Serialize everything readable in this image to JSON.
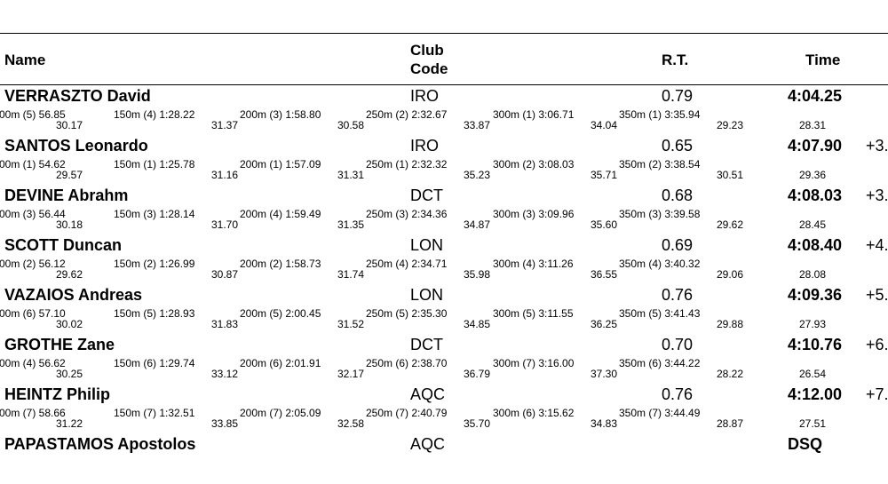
{
  "header": {
    "name": "Name",
    "club_line1": "Club",
    "club_line2": "Code",
    "rt": "R.T.",
    "time": "Time"
  },
  "results": [
    {
      "name": "VERRASZTO David",
      "club": "IRO",
      "rt": "0.79",
      "time": "4:04.25",
      "behind": "",
      "splits": [
        {
          "label": "00m (5) 56.85",
          "diff": "30.17"
        },
        {
          "label": "150m (4) 1:28.22",
          "diff": "31.37"
        },
        {
          "label": "200m (3) 1:58.80",
          "diff": "30.58"
        },
        {
          "label": "250m (2) 2:32.67",
          "diff": "33.87"
        },
        {
          "label": "300m (1) 3:06.71",
          "diff": "34.04"
        },
        {
          "label": "350m (1) 3:35.94",
          "diff": "29.23"
        }
      ],
      "last_lap": "28.31"
    },
    {
      "name": "SANTOS Leonardo",
      "club": "IRO",
      "rt": "0.65",
      "time": "4:07.90",
      "behind": "+3.",
      "splits": [
        {
          "label": "00m (1) 54.62",
          "diff": "29.57"
        },
        {
          "label": "150m (1) 1:25.78",
          "diff": "31.16"
        },
        {
          "label": "200m (1) 1:57.09",
          "diff": "31.31"
        },
        {
          "label": "250m (1) 2:32.32",
          "diff": "35.23"
        },
        {
          "label": "300m (2) 3:08.03",
          "diff": "35.71"
        },
        {
          "label": "350m (2) 3:38.54",
          "diff": "30.51"
        }
      ],
      "last_lap": "29.36"
    },
    {
      "name": "DEVINE Abrahm",
      "club": "DCT",
      "rt": "0.68",
      "time": "4:08.03",
      "behind": "+3.",
      "splits": [
        {
          "label": "00m (3) 56.44",
          "diff": "30.18"
        },
        {
          "label": "150m (3) 1:28.14",
          "diff": "31.70"
        },
        {
          "label": "200m (4) 1:59.49",
          "diff": "31.35"
        },
        {
          "label": "250m (3) 2:34.36",
          "diff": "34.87"
        },
        {
          "label": "300m (3) 3:09.96",
          "diff": "35.60"
        },
        {
          "label": "350m (3) 3:39.58",
          "diff": "29.62"
        }
      ],
      "last_lap": "28.45"
    },
    {
      "name": "SCOTT Duncan",
      "club": "LON",
      "rt": "0.69",
      "time": "4:08.40",
      "behind": "+4.",
      "splits": [
        {
          "label": "00m (2) 56.12",
          "diff": "29.62"
        },
        {
          "label": "150m (2) 1:26.99",
          "diff": "30.87"
        },
        {
          "label": "200m (2) 1:58.73",
          "diff": "31.74"
        },
        {
          "label": "250m (4) 2:34.71",
          "diff": "35.98"
        },
        {
          "label": "300m (4) 3:11.26",
          "diff": "36.55"
        },
        {
          "label": "350m (4) 3:40.32",
          "diff": "29.06"
        }
      ],
      "last_lap": "28.08"
    },
    {
      "name": "VAZAIOS Andreas",
      "club": "LON",
      "rt": "0.76",
      "time": "4:09.36",
      "behind": "+5.",
      "splits": [
        {
          "label": "00m (6) 57.10",
          "diff": "30.02"
        },
        {
          "label": "150m (5) 1:28.93",
          "diff": "31.83"
        },
        {
          "label": "200m (5) 2:00.45",
          "diff": "31.52"
        },
        {
          "label": "250m (5) 2:35.30",
          "diff": "34.85"
        },
        {
          "label": "300m (5) 3:11.55",
          "diff": "36.25"
        },
        {
          "label": "350m (5) 3:41.43",
          "diff": "29.88"
        }
      ],
      "last_lap": "27.93"
    },
    {
      "name": "GROTHE Zane",
      "club": "DCT",
      "rt": "0.70",
      "time": "4:10.76",
      "behind": "+6.",
      "splits": [
        {
          "label": "00m (4) 56.62",
          "diff": "30.25"
        },
        {
          "label": "150m (6) 1:29.74",
          "diff": "33.12"
        },
        {
          "label": "200m (6) 2:01.91",
          "diff": "32.17"
        },
        {
          "label": "250m (6) 2:38.70",
          "diff": "36.79"
        },
        {
          "label": "300m (7) 3:16.00",
          "diff": "37.30"
        },
        {
          "label": "350m (6) 3:44.22",
          "diff": "28.22"
        }
      ],
      "last_lap": "26.54"
    },
    {
      "name": "HEINTZ Philip",
      "club": "AQC",
      "rt": "0.76",
      "time": "4:12.00",
      "behind": "+7.",
      "splits": [
        {
          "label": "00m (7) 58.66",
          "diff": "31.22"
        },
        {
          "label": "150m (7) 1:32.51",
          "diff": "33.85"
        },
        {
          "label": "200m (7) 2:05.09",
          "diff": "32.58"
        },
        {
          "label": "250m (7) 2:40.79",
          "diff": "35.70"
        },
        {
          "label": "300m (6) 3:15.62",
          "diff": "34.83"
        },
        {
          "label": "350m (7) 3:44.49",
          "diff": "28.87"
        }
      ],
      "last_lap": "27.51"
    },
    {
      "name": "PAPASTAMOS Apostolos",
      "club": "AQC",
      "rt": "",
      "time": "DSQ",
      "behind": "",
      "splits": [],
      "last_lap": ""
    }
  ]
}
